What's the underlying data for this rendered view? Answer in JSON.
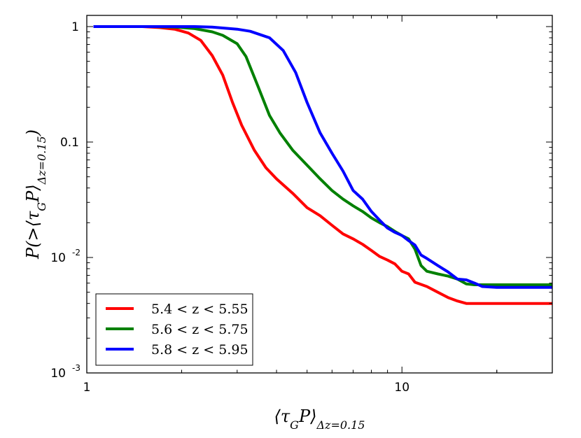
{
  "chart_data": {
    "type": "line",
    "title": "",
    "xlabel": "⟨τ_GP⟩_{Δz=0.15}",
    "ylabel": "P(>⟨τ_GP⟩_{Δz=0.15})",
    "xscale": "log",
    "yscale": "log",
    "xlim": [
      1,
      30
    ],
    "ylim": [
      0.001,
      1.25
    ],
    "x_ticks": [
      {
        "value": 1,
        "label": "1"
      },
      {
        "value": 10,
        "label": "10"
      }
    ],
    "y_ticks": [
      {
        "value": 1,
        "base": "1",
        "exp": ""
      },
      {
        "value": 0.1,
        "base": "0.1",
        "exp": ""
      },
      {
        "value": 0.01,
        "base": "10",
        "exp": "-2"
      },
      {
        "value": 0.001,
        "base": "10",
        "exp": "-3"
      }
    ],
    "grid": false,
    "legend_position": "lower-left",
    "series": [
      {
        "name": "5.4 < z < 5.55",
        "color": "#ff0000",
        "x": [
          1.05,
          1.5,
          1.7,
          1.9,
          2.1,
          2.3,
          2.5,
          2.7,
          2.9,
          3.1,
          3.4,
          3.7,
          4.0,
          4.5,
          5.0,
          5.5,
          6.0,
          6.5,
          7.0,
          7.5,
          8.0,
          8.5,
          9.0,
          9.5,
          10.0,
          10.5,
          11.0,
          12.0,
          13.0,
          14.0,
          15.0,
          16.0,
          17.0,
          20.0,
          25.0,
          30.0
        ],
        "y": [
          1.0,
          1.0,
          0.98,
          0.95,
          0.88,
          0.76,
          0.56,
          0.38,
          0.22,
          0.14,
          0.085,
          0.06,
          0.048,
          0.036,
          0.027,
          0.023,
          0.019,
          0.016,
          0.0145,
          0.013,
          0.0115,
          0.0102,
          0.0095,
          0.0088,
          0.0076,
          0.0072,
          0.0061,
          0.0056,
          0.005,
          0.0045,
          0.0042,
          0.004,
          0.004,
          0.004,
          0.004,
          0.004
        ]
      },
      {
        "name": "5.6 < z < 5.75",
        "color": "#008000",
        "x": [
          1.05,
          1.6,
          1.9,
          2.2,
          2.5,
          2.7,
          3.0,
          3.2,
          3.5,
          3.8,
          4.1,
          4.5,
          5.0,
          5.5,
          6.0,
          6.5,
          7.0,
          7.5,
          8.0,
          8.5,
          9.0,
          9.5,
          10.0,
          10.5,
          11.0,
          11.5,
          12.0,
          13.0,
          14.0,
          15.0,
          16.0,
          17.0,
          18.0,
          20.0,
          25.0,
          30.0
        ],
        "y": [
          1.0,
          1.0,
          0.99,
          0.96,
          0.9,
          0.84,
          0.71,
          0.55,
          0.3,
          0.17,
          0.12,
          0.085,
          0.063,
          0.048,
          0.038,
          0.032,
          0.028,
          0.025,
          0.022,
          0.02,
          0.0185,
          0.0168,
          0.0155,
          0.0145,
          0.0118,
          0.0085,
          0.0076,
          0.0072,
          0.0069,
          0.0065,
          0.0059,
          0.0058,
          0.0058,
          0.0058,
          0.0058,
          0.0058
        ]
      },
      {
        "name": "5.8 < z < 5.95",
        "color": "#0000ff",
        "x": [
          1.05,
          2.2,
          2.5,
          3.0,
          3.3,
          3.8,
          4.2,
          4.6,
          5.0,
          5.5,
          6.0,
          6.5,
          7.0,
          7.5,
          8.0,
          8.5,
          9.0,
          9.5,
          10.0,
          10.5,
          11.0,
          11.5,
          12.0,
          13.0,
          14.0,
          15.0,
          16.0,
          17.0,
          18.0,
          20.0,
          25.0,
          30.0
        ],
        "y": [
          1.0,
          1.0,
          0.99,
          0.95,
          0.91,
          0.8,
          0.62,
          0.4,
          0.22,
          0.12,
          0.08,
          0.056,
          0.038,
          0.032,
          0.025,
          0.021,
          0.018,
          0.0165,
          0.0155,
          0.014,
          0.0128,
          0.0105,
          0.0098,
          0.0085,
          0.0075,
          0.0065,
          0.0064,
          0.006,
          0.0056,
          0.0055,
          0.0055,
          0.0055
        ]
      }
    ]
  }
}
